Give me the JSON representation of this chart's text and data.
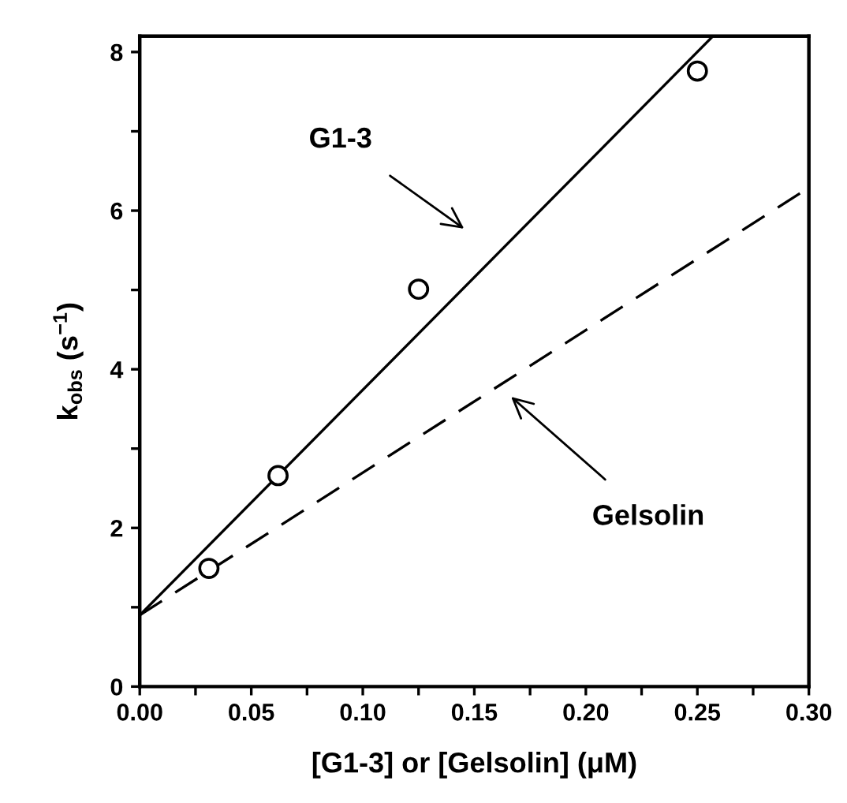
{
  "chart_data": {
    "type": "line",
    "xlabel": "[G1-3] or [Gelsolin] (μM)",
    "ylabel": "k$_{obs}$ (s$^{−1}$)",
    "xlim": [
      0,
      0.3
    ],
    "ylim": [
      0,
      8.2
    ],
    "xticks": [
      {
        "value": 0,
        "label": "0.00"
      },
      {
        "value": 0.025,
        "label": null
      },
      {
        "value": 0.05,
        "label": "0.05"
      },
      {
        "value": 0.075,
        "label": null
      },
      {
        "value": 0.1,
        "label": "0.10"
      },
      {
        "value": 0.125,
        "label": null
      },
      {
        "value": 0.15,
        "label": "0.15"
      },
      {
        "value": 0.175,
        "label": null
      },
      {
        "value": 0.2,
        "label": "0.20"
      },
      {
        "value": 0.225,
        "label": null
      },
      {
        "value": 0.25,
        "label": "0.25"
      },
      {
        "value": 0.275,
        "label": null
      },
      {
        "value": 0.3,
        "label": "0.30"
      }
    ],
    "yticks": [
      0,
      {
        "value": 1,
        "label": null
      },
      2,
      {
        "value": 3,
        "label": null
      },
      4,
      {
        "value": 5,
        "label": null
      },
      6,
      {
        "value": 7,
        "label": null
      },
      8
    ],
    "grid": false,
    "legend": false,
    "series": [
      {
        "type": "scatter",
        "marker": "circle",
        "color": "#000000",
        "x": [
          0.031,
          0.062,
          0.125,
          0.25
        ],
        "values": [
          1.49,
          2.66,
          5.01,
          7.76
        ]
      },
      {
        "marker": "none",
        "line_style": "solid",
        "color": "#000000",
        "x": [
          0,
          0.257
        ],
        "values": [
          0.9,
          8.2
        ]
      },
      {
        "marker": "none",
        "line_style": "dashed",
        "color": "#000000",
        "x": [
          0,
          0.3
        ],
        "values": [
          0.9,
          6.29
        ]
      }
    ],
    "annotations": [
      "G1-3",
      "Gelsolin"
    ]
  }
}
